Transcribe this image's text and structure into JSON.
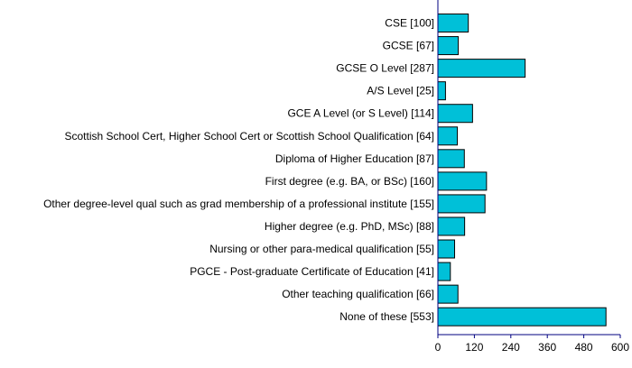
{
  "colors": {
    "bar_fill": "#00c0d8",
    "bar_stroke": "#000000",
    "axis": "#000080"
  },
  "chart_data": {
    "type": "bar",
    "orientation": "horizontal",
    "categories": [
      "CSE [100]",
      "GCSE [67]",
      "GCSE O Level [287]",
      "A/S Level [25]",
      "GCE A Level (or S Level) [114]",
      "Scottish School Cert, Higher School Cert or Scottish School Qualification [64]",
      "Diploma of Higher Education [87]",
      "First degree (e.g. BA, or BSc) [160]",
      "Other degree-level qual such as grad membership of a professional institute [155]",
      "Higher degree (e.g. PhD, MSc) [88]",
      "Nursing or other para-medical qualification [55]",
      "PGCE - Post-graduate Certificate of Education [41]",
      "Other teaching qualification [66]",
      "None of these [553]"
    ],
    "values": [
      100,
      67,
      287,
      25,
      114,
      64,
      87,
      160,
      155,
      88,
      55,
      41,
      66,
      553
    ],
    "xlim": [
      0,
      600
    ],
    "xticks": [
      "0",
      "120",
      "240",
      "360",
      "480",
      "600"
    ],
    "grid": false
  }
}
